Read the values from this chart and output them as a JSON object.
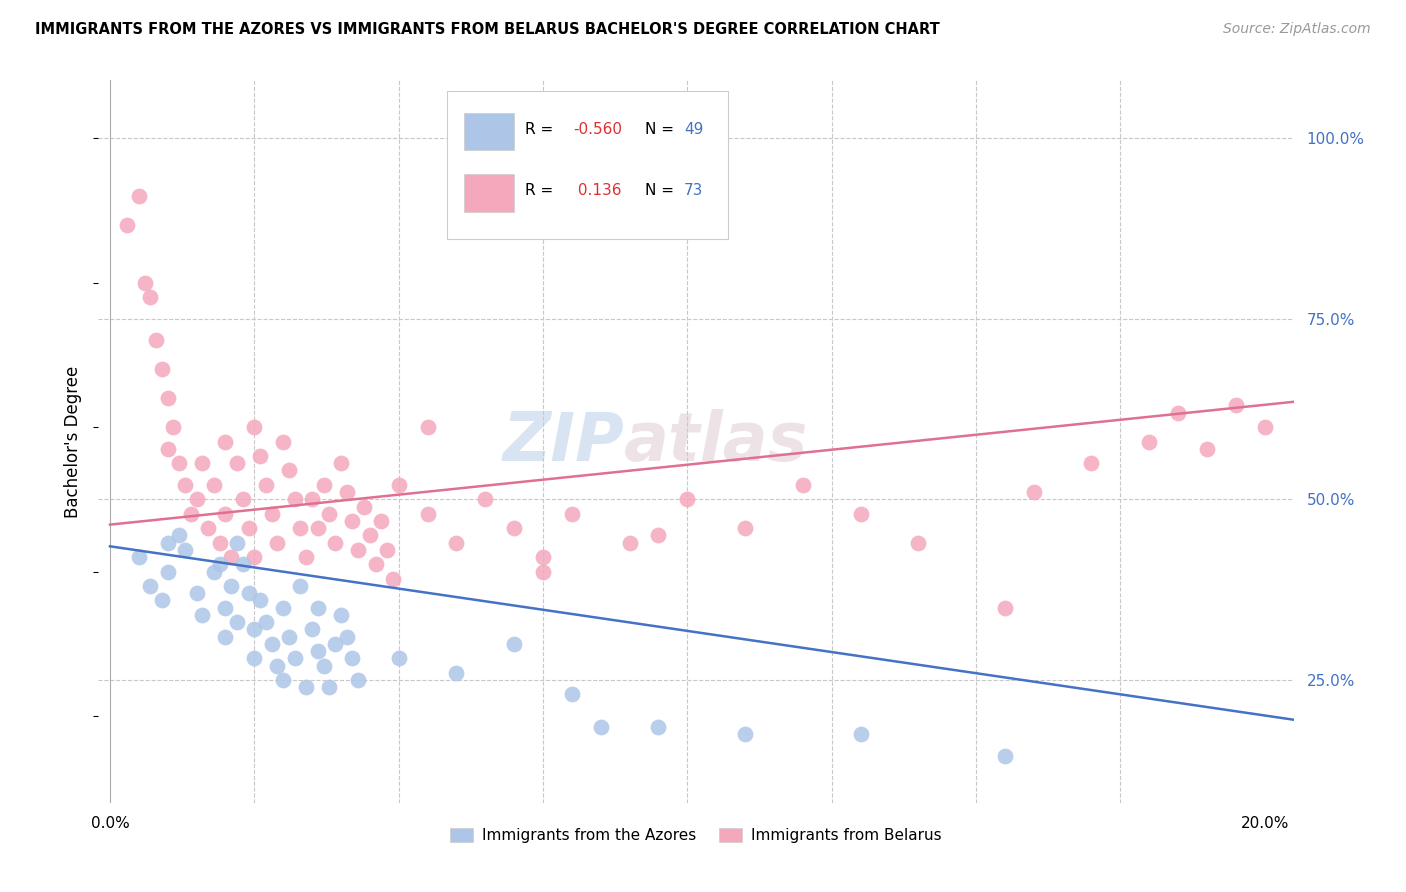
{
  "title": "IMMIGRANTS FROM THE AZORES VS IMMIGRANTS FROM BELARUS BACHELOR'S DEGREE CORRELATION CHART",
  "source": "Source: ZipAtlas.com",
  "ylabel": "Bachelor's Degree",
  "azores_R": -0.56,
  "azores_N": 49,
  "belarus_R": 0.136,
  "belarus_N": 73,
  "azores_color": "#adc6e8",
  "belarus_color": "#f5a8bc",
  "azores_line_color": "#4472c4",
  "belarus_line_color": "#e07090",
  "legend_label_azores": "Immigrants from the Azores",
  "legend_label_belarus": "Immigrants from Belarus",
  "watermark_zip": "ZIP",
  "watermark_atlas": "atlas",
  "background_color": "#ffffff",
  "grid_color": "#c8c8c8",
  "xlim": [
    -0.002,
    0.205
  ],
  "ylim": [
    0.08,
    1.08
  ],
  "right_yticks": [
    0.25,
    0.5,
    0.75,
    1.0
  ],
  "right_yticklabels": [
    "25.0%",
    "50.0%",
    "75.0%",
    "100.0%"
  ],
  "bottom_label": "20.0%",
  "azores_x": [
    0.005,
    0.007,
    0.009,
    0.01,
    0.01,
    0.012,
    0.013,
    0.015,
    0.016,
    0.018,
    0.019,
    0.02,
    0.02,
    0.021,
    0.022,
    0.022,
    0.023,
    0.024,
    0.025,
    0.025,
    0.026,
    0.027,
    0.028,
    0.029,
    0.03,
    0.03,
    0.031,
    0.032,
    0.033,
    0.034,
    0.035,
    0.036,
    0.036,
    0.037,
    0.038,
    0.039,
    0.04,
    0.041,
    0.042,
    0.043,
    0.05,
    0.06,
    0.07,
    0.08,
    0.085,
    0.095,
    0.11,
    0.13,
    0.155
  ],
  "azores_y": [
    0.42,
    0.38,
    0.36,
    0.44,
    0.4,
    0.45,
    0.43,
    0.37,
    0.34,
    0.4,
    0.41,
    0.35,
    0.31,
    0.38,
    0.33,
    0.44,
    0.41,
    0.37,
    0.32,
    0.28,
    0.36,
    0.33,
    0.3,
    0.27,
    0.35,
    0.25,
    0.31,
    0.28,
    0.38,
    0.24,
    0.32,
    0.29,
    0.35,
    0.27,
    0.24,
    0.3,
    0.34,
    0.31,
    0.28,
    0.25,
    0.28,
    0.26,
    0.3,
    0.23,
    0.185,
    0.185,
    0.175,
    0.175,
    0.145
  ],
  "belarus_x": [
    0.003,
    0.005,
    0.006,
    0.007,
    0.008,
    0.009,
    0.01,
    0.01,
    0.011,
    0.012,
    0.013,
    0.014,
    0.015,
    0.016,
    0.017,
    0.018,
    0.019,
    0.02,
    0.02,
    0.021,
    0.022,
    0.023,
    0.024,
    0.025,
    0.025,
    0.026,
    0.027,
    0.028,
    0.029,
    0.03,
    0.031,
    0.032,
    0.033,
    0.034,
    0.035,
    0.036,
    0.037,
    0.038,
    0.039,
    0.04,
    0.041,
    0.042,
    0.043,
    0.044,
    0.045,
    0.046,
    0.047,
    0.048,
    0.049,
    0.05,
    0.055,
    0.06,
    0.065,
    0.07,
    0.075,
    0.08,
    0.09,
    0.1,
    0.11,
    0.12,
    0.13,
    0.14,
    0.155,
    0.16,
    0.17,
    0.18,
    0.185,
    0.19,
    0.195,
    0.2,
    0.055,
    0.075,
    0.095
  ],
  "belarus_y": [
    0.88,
    0.92,
    0.8,
    0.78,
    0.72,
    0.68,
    0.64,
    0.57,
    0.6,
    0.55,
    0.52,
    0.48,
    0.5,
    0.55,
    0.46,
    0.52,
    0.44,
    0.58,
    0.48,
    0.42,
    0.55,
    0.5,
    0.46,
    0.42,
    0.6,
    0.56,
    0.52,
    0.48,
    0.44,
    0.58,
    0.54,
    0.5,
    0.46,
    0.42,
    0.5,
    0.46,
    0.52,
    0.48,
    0.44,
    0.55,
    0.51,
    0.47,
    0.43,
    0.49,
    0.45,
    0.41,
    0.47,
    0.43,
    0.39,
    0.52,
    0.48,
    0.44,
    0.5,
    0.46,
    0.42,
    0.48,
    0.44,
    0.5,
    0.46,
    0.52,
    0.48,
    0.44,
    0.35,
    0.51,
    0.55,
    0.58,
    0.62,
    0.57,
    0.63,
    0.6,
    0.6,
    0.4,
    0.45
  ]
}
